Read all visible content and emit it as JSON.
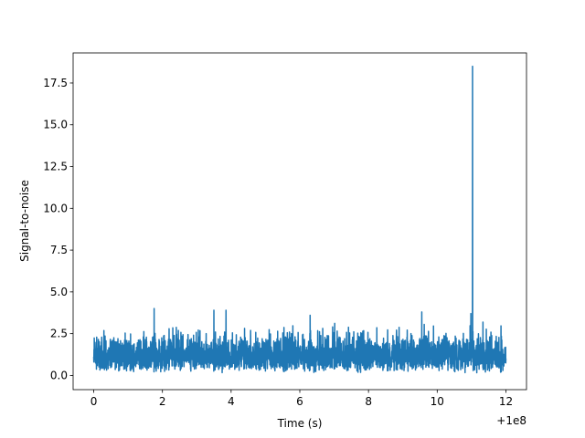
{
  "chart_data": {
    "type": "line",
    "xlabel": "Time (s)",
    "ylabel": "Signal-to-noise",
    "x_offset_label": "+1e8",
    "xlim": [
      -0.6,
      12.6
    ],
    "ylim": [
      -0.85,
      19.3
    ],
    "xticks": [
      0,
      2,
      4,
      6,
      8,
      10,
      12
    ],
    "xtick_labels": [
      "0",
      "2",
      "4",
      "6",
      "8",
      "10",
      "12"
    ],
    "yticks": [
      0.0,
      2.5,
      5.0,
      7.5,
      10.0,
      12.5,
      15.0,
      17.5
    ],
    "ytick_labels": [
      "0.0",
      "2.5",
      "5.0",
      "7.5",
      "10.0",
      "12.5",
      "15.0",
      "17.5"
    ],
    "grid": false,
    "series": [
      {
        "color": "#1f77b4",
        "noise_range": [
          0.0,
          2.6
        ],
        "notable_points": [
          {
            "x": 1.76,
            "y": 4.0
          },
          {
            "x": 3.5,
            "y": 3.9
          },
          {
            "x": 3.85,
            "y": 3.9
          },
          {
            "x": 6.3,
            "y": 3.6
          },
          {
            "x": 9.55,
            "y": 3.8
          },
          {
            "x": 10.98,
            "y": 3.7
          },
          {
            "x": 11.03,
            "y": 18.5
          }
        ],
        "x_range": [
          0,
          12
        ]
      }
    ]
  }
}
